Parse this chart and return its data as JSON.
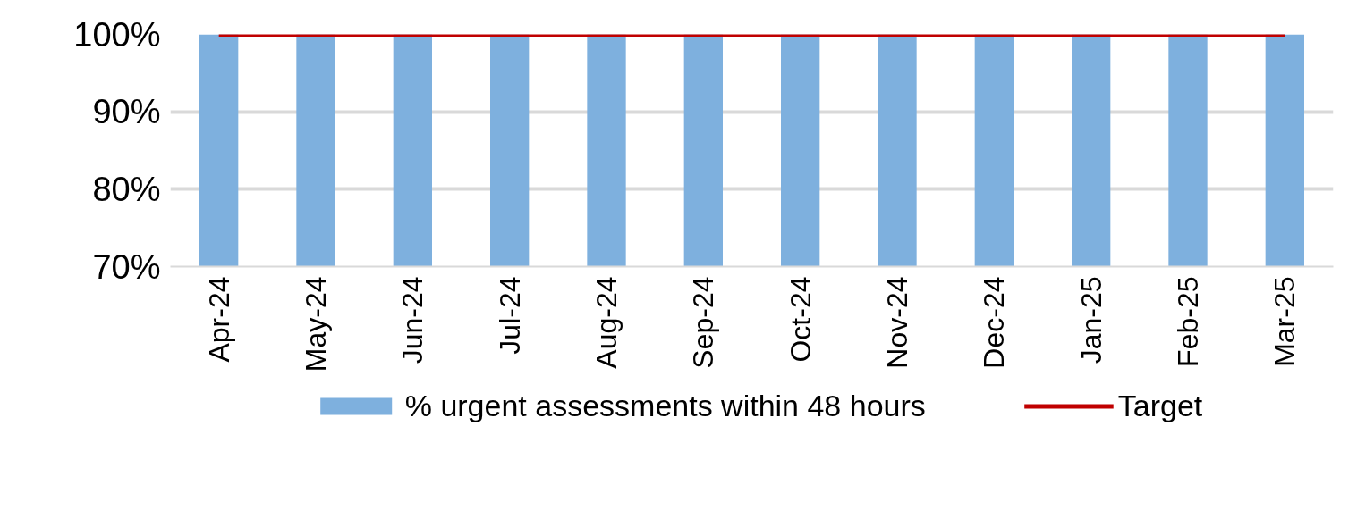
{
  "chart_data": {
    "type": "bar",
    "categories": [
      "Apr-24",
      "May-24",
      "Jun-24",
      "Jul-24",
      "Aug-24",
      "Sep-24",
      "Oct-24",
      "Nov-24",
      "Dec-24",
      "Jan-25",
      "Feb-25",
      "Mar-25"
    ],
    "series": [
      {
        "name": "% urgent assessments within 48 hours",
        "color": "#7eb0de",
        "values": [
          100,
          100,
          100,
          100,
          100,
          100,
          100,
          100,
          100,
          100,
          100,
          100
        ]
      },
      {
        "name": "Target",
        "type": "line",
        "color": "#c00000",
        "values": [
          100,
          100,
          100,
          100,
          100,
          100,
          100,
          100,
          100,
          100,
          100,
          100
        ]
      }
    ],
    "ylim": [
      70,
      100
    ],
    "yticks": [
      {
        "value": 70,
        "label": "70%"
      },
      {
        "value": 80,
        "label": "80%"
      },
      {
        "value": 90,
        "label": "90%"
      },
      {
        "value": 100,
        "label": "100%"
      }
    ],
    "grid": "y",
    "legend": "bottom"
  }
}
